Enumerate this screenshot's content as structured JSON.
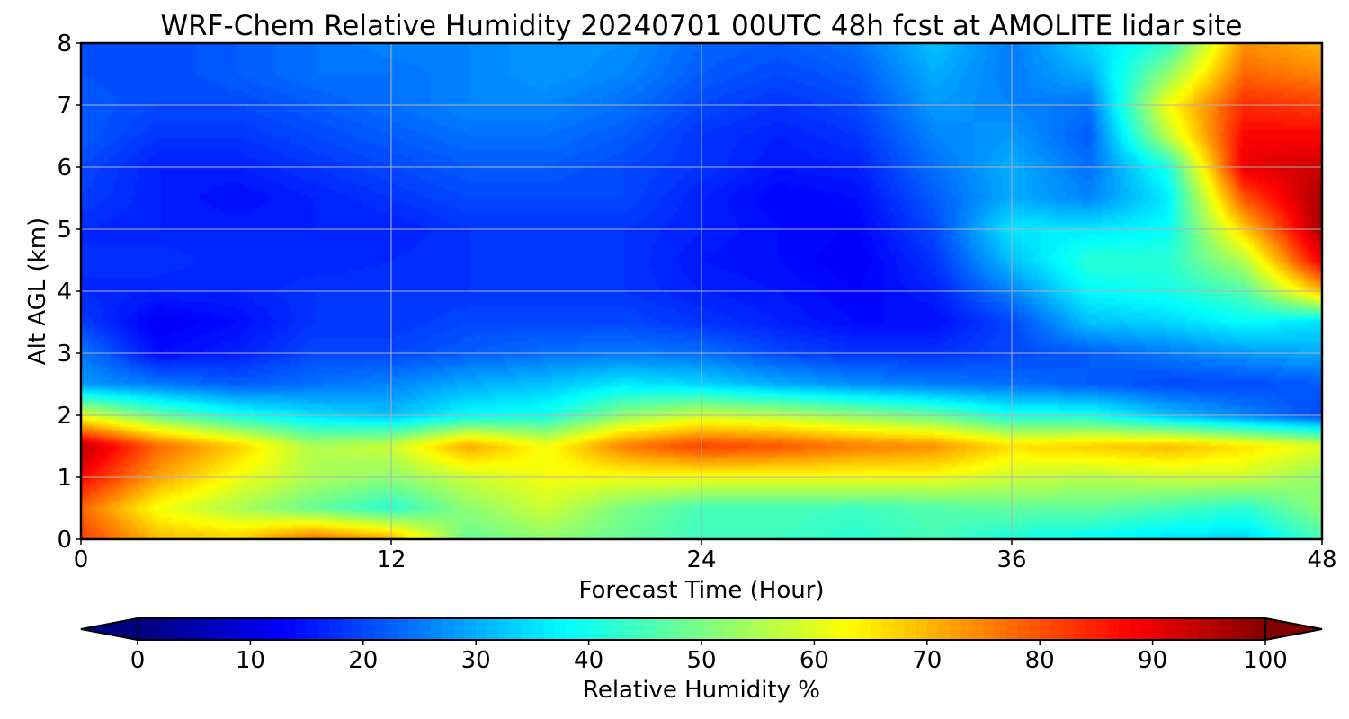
{
  "chart_data": {
    "type": "heatmap",
    "title": "WRF-Chem Relative Humidity 20240701 00UTC 48h fcst at AMOLITE lidar site",
    "xlabel": "Forecast Time (Hour)",
    "ylabel": "Alt AGL (km)",
    "xlim": [
      0,
      48
    ],
    "ylim": [
      0,
      8
    ],
    "xticks": [
      0,
      12,
      24,
      36,
      48
    ],
    "yticks": [
      0,
      1,
      2,
      3,
      4,
      5,
      6,
      7,
      8
    ],
    "grid": true,
    "colormap": "jet",
    "colorbar": {
      "label": "Relative Humidity %",
      "range": [
        0,
        100
      ],
      "ticks": [
        0,
        10,
        20,
        30,
        40,
        50,
        60,
        70,
        80,
        90,
        100
      ],
      "extend": "both",
      "orientation": "horizontal"
    },
    "x": [
      0,
      3,
      6,
      9,
      12,
      15,
      18,
      21,
      24,
      27,
      30,
      33,
      36,
      39,
      42,
      45,
      48
    ],
    "y": [
      0,
      0.5,
      1,
      1.5,
      2,
      2.5,
      3,
      3.5,
      4,
      4.5,
      5,
      5.5,
      6,
      6.5,
      7,
      7.5,
      8
    ],
    "values": [
      [
        82,
        70,
        68,
        78,
        72,
        48,
        52,
        48,
        44,
        44,
        42,
        45,
        40,
        38,
        35,
        34,
        45
      ],
      [
        78,
        62,
        55,
        48,
        42,
        52,
        58,
        50,
        45,
        45,
        44,
        46,
        48,
        48,
        45,
        42,
        52
      ],
      [
        88,
        72,
        62,
        55,
        52,
        58,
        62,
        62,
        62,
        62,
        62,
        62,
        58,
        56,
        58,
        58,
        52
      ],
      [
        95,
        78,
        68,
        55,
        58,
        72,
        62,
        76,
        82,
        80,
        76,
        74,
        66,
        68,
        70,
        66,
        60
      ],
      [
        60,
        48,
        40,
        35,
        32,
        38,
        40,
        52,
        58,
        56,
        52,
        48,
        40,
        40,
        32,
        26,
        20
      ],
      [
        28,
        25,
        22,
        24,
        26,
        30,
        32,
        36,
        34,
        30,
        27,
        25,
        24,
        22,
        20,
        20,
        22
      ],
      [
        25,
        14,
        16,
        20,
        20,
        22,
        24,
        25,
        24,
        20,
        18,
        18,
        20,
        22,
        25,
        28,
        30
      ],
      [
        19,
        12,
        14,
        18,
        18,
        20,
        20,
        20,
        18,
        16,
        14,
        14,
        20,
        32,
        34,
        38,
        35
      ],
      [
        17,
        16,
        16,
        18,
        18,
        18,
        18,
        18,
        16,
        15,
        13,
        16,
        26,
        38,
        40,
        46,
        70
      ],
      [
        17,
        18,
        16,
        16,
        17,
        18,
        18,
        18,
        15,
        14,
        12,
        18,
        32,
        42,
        42,
        56,
        90
      ],
      [
        17,
        16,
        16,
        16,
        16,
        18,
        18,
        18,
        16,
        14,
        13,
        20,
        36,
        36,
        38,
        68,
        97
      ],
      [
        19,
        16,
        14,
        16,
        18,
        20,
        20,
        20,
        16,
        13,
        14,
        22,
        30,
        26,
        36,
        80,
        97
      ],
      [
        20,
        16,
        16,
        18,
        20,
        22,
        22,
        20,
        18,
        15,
        16,
        24,
        30,
        24,
        40,
        90,
        93
      ],
      [
        22,
        18,
        18,
        20,
        22,
        24,
        24,
        22,
        18,
        16,
        18,
        26,
        28,
        22,
        56,
        88,
        88
      ],
      [
        22,
        20,
        20,
        22,
        24,
        26,
        26,
        24,
        20,
        18,
        20,
        28,
        26,
        24,
        62,
        84,
        82
      ],
      [
        21,
        20,
        22,
        24,
        24,
        26,
        28,
        26,
        22,
        20,
        22,
        30,
        25,
        30,
        52,
        78,
        75
      ],
      [
        20,
        20,
        22,
        24,
        26,
        26,
        28,
        27,
        23,
        22,
        24,
        32,
        25,
        34,
        42,
        74,
        70
      ]
    ]
  }
}
